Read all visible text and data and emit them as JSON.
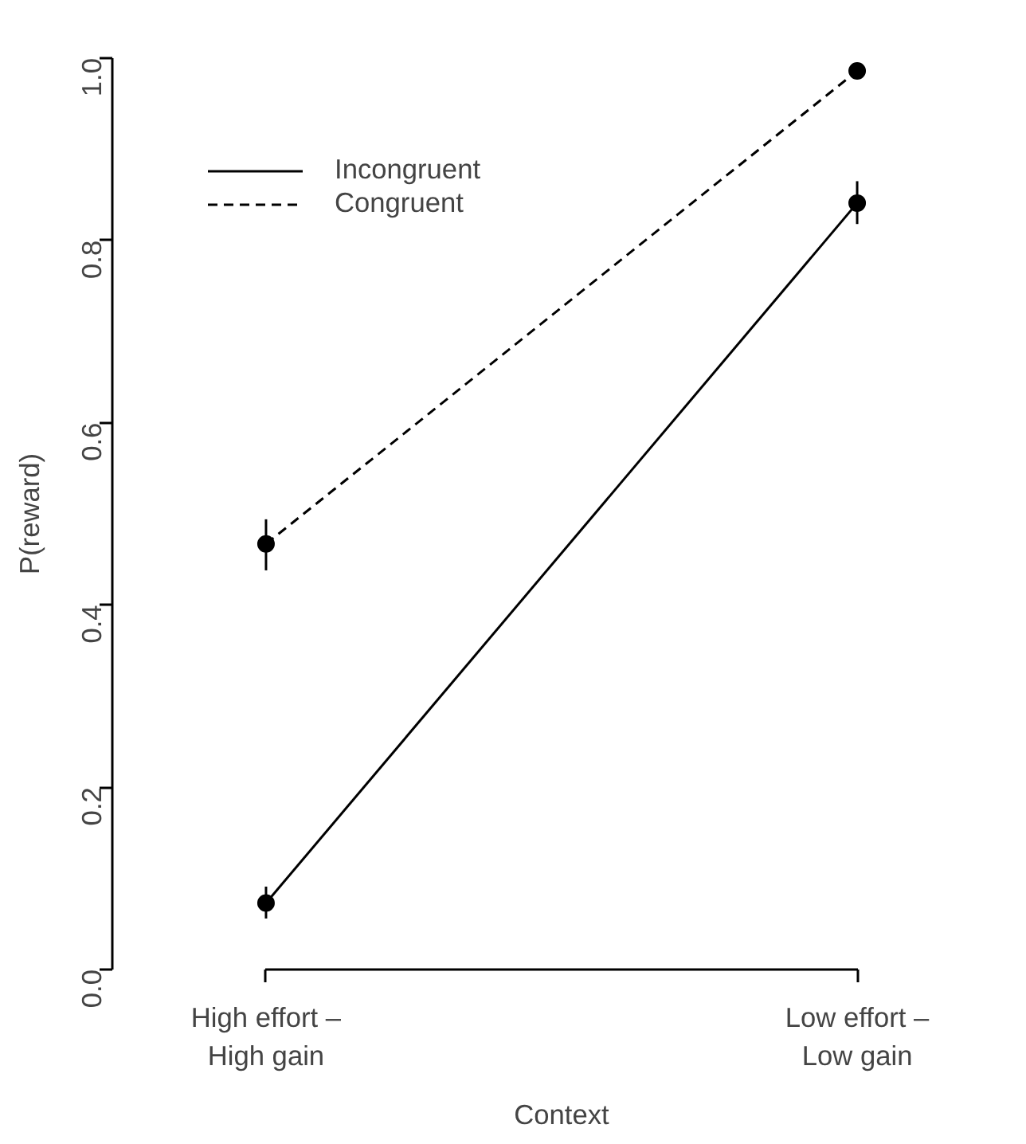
{
  "chart_data": {
    "type": "line",
    "xlabel": "Context",
    "ylabel": "P(reward)",
    "categories": [
      "High effort –\nHigh gain",
      "Low effort –\nLow gain"
    ],
    "series": [
      {
        "name": "Incongruent",
        "color": "#000000",
        "values": [
          0.073,
          0.841
        ],
        "errors": [
          [
            0.056,
            0.091
          ],
          [
            0.818,
            0.865
          ]
        ],
        "line_style": "solid"
      },
      {
        "name": "Congruent",
        "color": "#000000",
        "values": [
          0.467,
          0.986
        ],
        "errors": [
          [
            0.438,
            0.494
          ],
          null
        ],
        "line_style": "dashed"
      }
    ],
    "ylim": [
      0,
      1
    ],
    "yticks": [
      {
        "value": 0,
        "label": "0.0"
      },
      {
        "value": 0.2,
        "label": "0.2"
      },
      {
        "value": 0.4,
        "label": "0.4"
      },
      {
        "value": 0.6,
        "label": "0.6"
      },
      {
        "value": 0.8,
        "label": "0.8"
      },
      {
        "value": 1,
        "label": "1.0"
      }
    ],
    "marker": "circle",
    "legend": "top left",
    "grid": false
  }
}
